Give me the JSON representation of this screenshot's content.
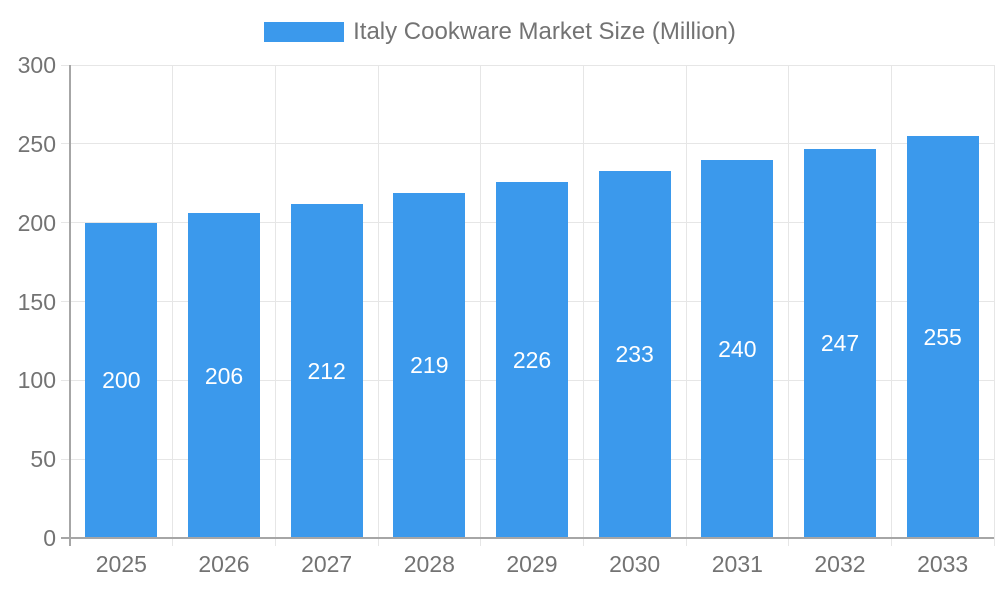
{
  "chart_data": {
    "type": "bar",
    "title": "Italy Cookware Market Size (Million)",
    "categories": [
      "2025",
      "2026",
      "2027",
      "2028",
      "2029",
      "2030",
      "2031",
      "2032",
      "2033"
    ],
    "values": [
      200,
      206,
      212,
      219,
      226,
      233,
      240,
      247,
      255
    ],
    "series": [
      {
        "name": "Italy Cookware Market Size (Million)",
        "values": [
          200,
          206,
          212,
          219,
          226,
          233,
          240,
          247,
          255
        ]
      }
    ],
    "xlabel": "",
    "ylabel": "",
    "ylim": [
      0,
      300
    ],
    "y_ticks": [
      0,
      50,
      100,
      150,
      200,
      250,
      300
    ],
    "grid": true,
    "legend_position": "top-center",
    "value_labels": "inside-center-white"
  },
  "legend": {
    "label": "Italy Cookware Market Size (Million)",
    "swatch_color": "#3b99ec"
  },
  "colors": {
    "bar": "#3b99ec",
    "grid": "#e6e6e6",
    "axis": "#a6a6a6",
    "text": "#737373",
    "value_label": "#ffffff",
    "background": "#ffffff"
  }
}
